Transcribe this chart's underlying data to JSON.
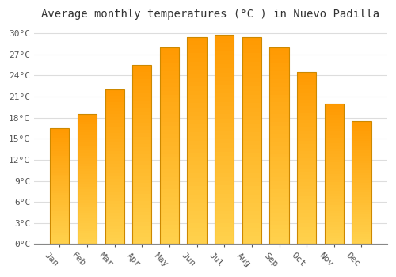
{
  "title": "Average monthly temperatures (°C ) in Nuevo Padilla",
  "months": [
    "Jan",
    "Feb",
    "Mar",
    "Apr",
    "May",
    "Jun",
    "Jul",
    "Aug",
    "Sep",
    "Oct",
    "Nov",
    "Dec"
  ],
  "values": [
    16.5,
    18.5,
    22.0,
    25.5,
    28.0,
    29.5,
    29.8,
    29.5,
    28.0,
    24.5,
    20.0,
    17.5
  ],
  "bar_color_top": "#FFA500",
  "bar_color_bottom": "#FFD050",
  "bar_edge_color": "#CC8800",
  "background_color": "#FFFFFF",
  "grid_color": "#DDDDDD",
  "ylim": [
    0,
    31
  ],
  "yticks": [
    0,
    3,
    6,
    9,
    12,
    15,
    18,
    21,
    24,
    27,
    30
  ],
  "title_fontsize": 10,
  "tick_fontsize": 8,
  "label_rotation": -45
}
